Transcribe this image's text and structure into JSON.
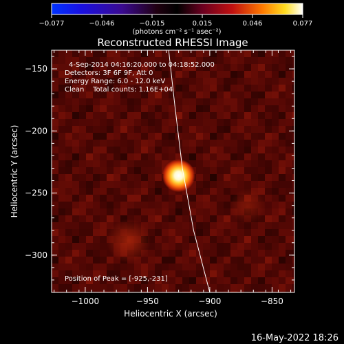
{
  "colorbar": {
    "ticks": [
      "−0.077",
      "−0.046",
      "−0.015",
      "0.015",
      "0.046",
      "0.077"
    ],
    "unit_label": "(photons cm⁻² s⁻¹ asec⁻²)"
  },
  "chart_data": {
    "type": "heatmap",
    "title": "Reconstructed RHESSI Image",
    "xlabel": "Heliocentric X (arcsec)",
    "ylabel": "Heliocentric Y (arcsec)",
    "xlim": [
      -1027,
      -832
    ],
    "ylim": [
      -330,
      -135
    ],
    "x_ticks": [
      -1000,
      -950,
      -900,
      -850
    ],
    "x_tick_labels": [
      "−1000",
      "−950",
      "−900",
      "−850"
    ],
    "y_ticks": [
      -150,
      -200,
      -250,
      -300
    ],
    "y_tick_labels": [
      "−150",
      "−200",
      "−250",
      "−300"
    ],
    "colorbar_range": [
      -0.077,
      0.077
    ],
    "colormap": "thermal (black-blue-red-yellow-white)",
    "peak": [
      -925,
      -231
    ],
    "limb_curve": [
      [
        -933,
        -135
      ],
      [
        -928,
        -180
      ],
      [
        -922,
        -230
      ],
      [
        -913,
        -280
      ],
      [
        -900,
        -330
      ]
    ],
    "annotations": [
      "4-Sep-2014 04:16:20.000 to 04:18:52.000",
      "Detectors: 3F 6F 9F, Att 0",
      "Energy Range: 6.0 - 12.0 keV",
      "Clean    Total counts: 1.16E+04"
    ],
    "peak_label": "Position of Peak = [-925,-231]"
  },
  "footer": {
    "date": "16-May-2022 18:26"
  }
}
